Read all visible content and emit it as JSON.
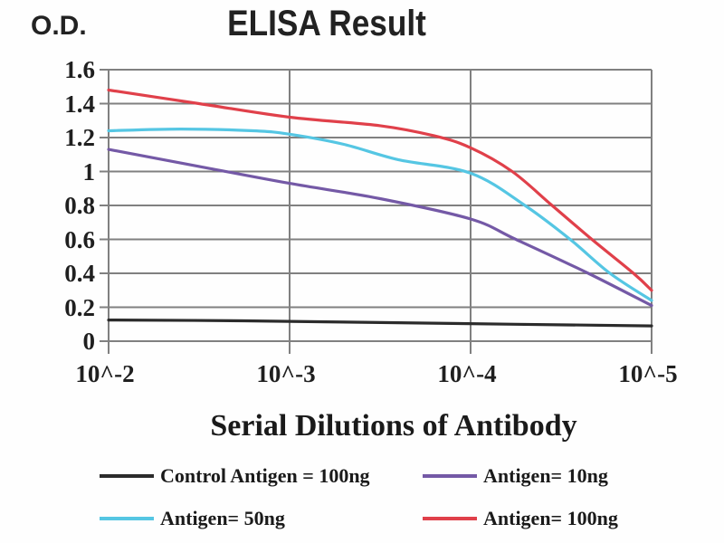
{
  "page": {
    "background": "#fefefe",
    "text_color": "#1a1a1a"
  },
  "chart_data": {
    "type": "line",
    "title": "ELISA Result",
    "ylabel": "O.D.",
    "xlabel": "Serial Dilutions of Antibody",
    "x_unit": "decade index, 0 = 10^-2 ... 3 = 10^-5",
    "x_tick_labels": [
      "10^-2",
      "10^-3",
      "10^-4",
      "10^-5"
    ],
    "x_tick_positions": [
      0,
      1,
      2,
      3
    ],
    "y_ticks": [
      0,
      0.2,
      0.4,
      0.6,
      0.8,
      1,
      1.2,
      1.4,
      1.6
    ],
    "y_tick_labels": [
      "0",
      "0.2",
      "0.4",
      "0.6",
      "0.8",
      "1",
      "1.2",
      "1.4",
      "1.6"
    ],
    "ylim": [
      0,
      1.6
    ],
    "xlim": [
      0,
      3
    ],
    "grid": true,
    "grid_color": "#808080",
    "legend_position": "bottom",
    "series": [
      {
        "name": "Control Antigen = 100ng",
        "color": "#2b2b2b",
        "points": [
          [
            0,
            0.125
          ],
          [
            0.75,
            0.12
          ],
          [
            1.5,
            0.11
          ],
          [
            2.25,
            0.1
          ],
          [
            3,
            0.09
          ]
        ]
      },
      {
        "name": "Antigen= 10ng",
        "color": "#7459a6",
        "points": [
          [
            0,
            1.13
          ],
          [
            0.5,
            1.03
          ],
          [
            1,
            0.93
          ],
          [
            1.5,
            0.84
          ],
          [
            2,
            0.72
          ],
          [
            2.25,
            0.6
          ],
          [
            2.65,
            0.4
          ],
          [
            3,
            0.21
          ]
        ]
      },
      {
        "name": "Antigen= 50ng",
        "color": "#55c6e3",
        "points": [
          [
            0,
            1.24
          ],
          [
            0.4,
            1.25
          ],
          [
            0.8,
            1.24
          ],
          [
            1,
            1.22
          ],
          [
            1.3,
            1.16
          ],
          [
            1.6,
            1.07
          ],
          [
            2,
            0.99
          ],
          [
            2.3,
            0.8
          ],
          [
            2.55,
            0.6
          ],
          [
            2.77,
            0.4
          ],
          [
            3,
            0.24
          ]
        ]
      },
      {
        "name": "Antigen= 100ng",
        "color": "#e0404a",
        "points": [
          [
            0,
            1.48
          ],
          [
            0.5,
            1.4
          ],
          [
            1,
            1.32
          ],
          [
            1.5,
            1.27
          ],
          [
            1.8,
            1.21
          ],
          [
            2,
            1.14
          ],
          [
            2.23,
            1.0
          ],
          [
            2.45,
            0.8
          ],
          [
            2.67,
            0.6
          ],
          [
            2.9,
            0.4
          ],
          [
            3,
            0.3
          ]
        ]
      }
    ]
  },
  "legend": {
    "items": [
      {
        "label": "Control Antigen = 100ng",
        "color": "#2b2b2b"
      },
      {
        "label": "Antigen= 10ng",
        "color": "#7459a6"
      },
      {
        "label": "Antigen= 50ng",
        "color": "#55c6e3"
      },
      {
        "label": "Antigen= 100ng",
        "color": "#e0404a"
      }
    ]
  }
}
